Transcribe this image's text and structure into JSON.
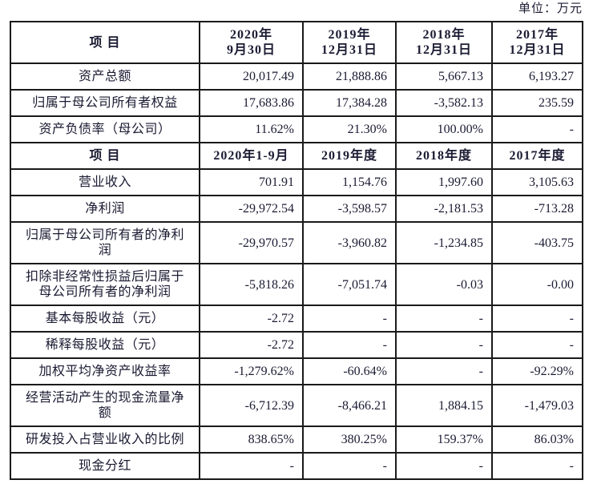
{
  "page": {
    "unit_label": "单位：万元"
  },
  "colors": {
    "text": "#1b1b33",
    "border": "#1a1a1a",
    "background": "#ffffff"
  },
  "table": {
    "sections": [
      {
        "header": {
          "label": "项  目",
          "columns": [
            "2020年\n9月30日",
            "2019年\n12月31日",
            "2018年\n12月31日",
            "2017年\n12月31日"
          ]
        },
        "rows": [
          {
            "label": "资产总额",
            "values": [
              "20,017.49",
              "21,888.86",
              "5,667.13",
              "6,193.27"
            ]
          },
          {
            "label": "归属于母公司所有者权益",
            "values": [
              "17,683.86",
              "17,384.28",
              "-3,582.13",
              "235.59"
            ]
          },
          {
            "label": "资产负债率（母公司）",
            "values": [
              "11.62%",
              "21.30%",
              "100.00%",
              "-"
            ]
          }
        ]
      },
      {
        "header": {
          "label": "项  目",
          "columns": [
            "2020年1-9月",
            "2019年度",
            "2018年度",
            "2017年度"
          ]
        },
        "rows": [
          {
            "label": "营业收入",
            "values": [
              "701.91",
              "1,154.76",
              "1,997.60",
              "3,105.63"
            ]
          },
          {
            "label": "净利润",
            "values": [
              "-29,972.54",
              "-3,598.57",
              "-2,181.53",
              "-713.28"
            ]
          },
          {
            "label": "归属于母公司所有者的净利润",
            "values": [
              "-29,970.57",
              "-3,960.82",
              "-1,234.85",
              "-403.75"
            ]
          },
          {
            "label": "扣除非经常性损益后归属于母公司所有者的净利润",
            "values": [
              "-5,818.26",
              "-7,051.74",
              "-0.03",
              "-0.00"
            ]
          },
          {
            "label": "基本每股收益（元）",
            "values": [
              "-2.72",
              "-",
              "-",
              "-"
            ]
          },
          {
            "label": "稀释每股收益（元）",
            "values": [
              "-2.72",
              "-",
              "-",
              "-"
            ]
          },
          {
            "label": "加权平均净资产收益率",
            "values": [
              "-1,279.62%",
              "-60.64%",
              "-",
              "-92.29%"
            ]
          },
          {
            "label": "经营活动产生的现金流量净额",
            "values": [
              "-6,712.39",
              "-8,466.21",
              "1,884.15",
              "-1,479.03"
            ]
          },
          {
            "label": "研发投入占营业收入的比例",
            "values": [
              "838.65%",
              "380.25%",
              "159.37%",
              "86.03%"
            ]
          },
          {
            "label": "现金分红",
            "values": [
              "-",
              "-",
              "-",
              "-"
            ]
          }
        ]
      }
    ]
  }
}
